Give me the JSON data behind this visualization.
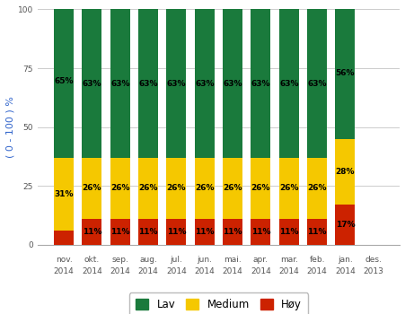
{
  "categories_line1": [
    "nov.",
    "okt.",
    "sep.",
    "aug.",
    "jul.",
    "jun.",
    "mai.",
    "apr.",
    "mar.",
    "feb.",
    "jan.",
    "des."
  ],
  "categories_line2": [
    "2014",
    "2014",
    "2014",
    "2014",
    "2014",
    "2014",
    "2014",
    "2014",
    "2014",
    "2014",
    "2014",
    "2013"
  ],
  "hoy": [
    6,
    11,
    11,
    11,
    11,
    11,
    11,
    11,
    11,
    11,
    17,
    0
  ],
  "medium": [
    31,
    26,
    26,
    26,
    26,
    26,
    26,
    26,
    26,
    26,
    28,
    0
  ],
  "lav": [
    65,
    63,
    63,
    63,
    63,
    63,
    63,
    63,
    63,
    63,
    56,
    0
  ],
  "hoy_labels": [
    "",
    "11%",
    "11%",
    "11%",
    "11%",
    "11%",
    "11%",
    "11%",
    "11%",
    "11%",
    "17%",
    ""
  ],
  "medium_labels": [
    "31%",
    "26%",
    "26%",
    "26%",
    "26%",
    "26%",
    "26%",
    "26%",
    "26%",
    "26%",
    "28%",
    ""
  ],
  "lav_labels": [
    "65%",
    "63%",
    "63%",
    "63%",
    "63%",
    "63%",
    "63%",
    "63%",
    "63%",
    "63%",
    "56%",
    ""
  ],
  "hoy_first_label": "",
  "color_hoy": "#cc2200",
  "color_medium": "#f5c800",
  "color_lav": "#1a7a3c",
  "ylabel": "( 0 - 100 ) %",
  "ylim": [
    0,
    100
  ],
  "yticks": [
    0,
    25,
    50,
    75,
    100
  ],
  "legend_lav": "Lav",
  "legend_medium": "Medium",
  "legend_hoy": "Høy",
  "bar_width": 0.7,
  "label_fontsize": 6.5,
  "tick_fontsize": 6.5,
  "ylabel_fontsize": 8,
  "legend_fontsize": 8.5
}
